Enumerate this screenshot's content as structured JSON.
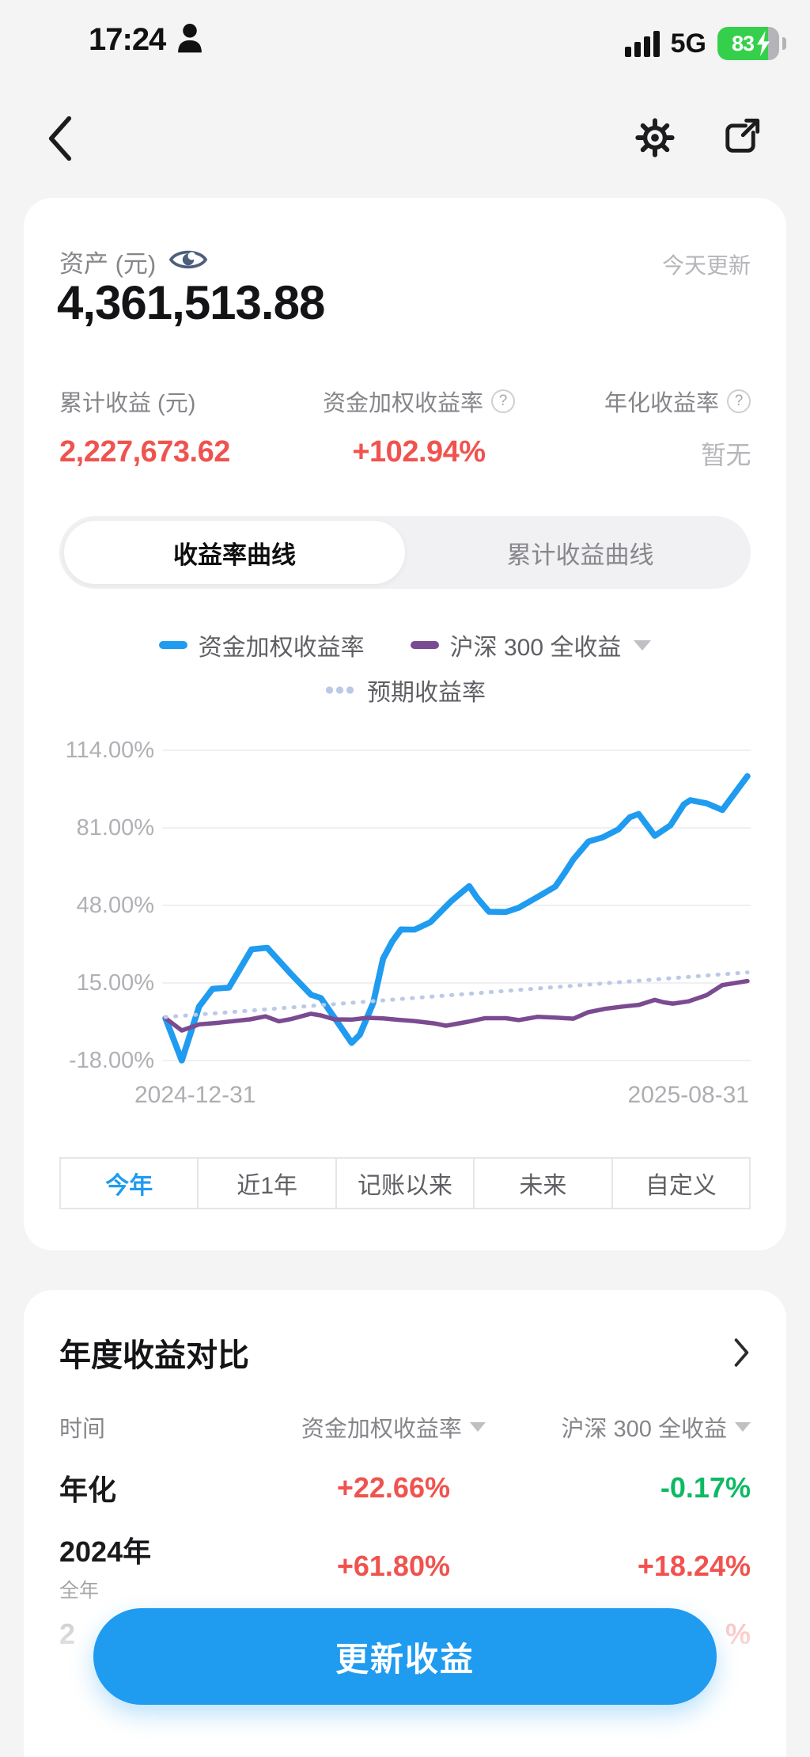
{
  "colors": {
    "accent-blue": "#1f9bf0",
    "line-blue": "#1f9bf0",
    "line-purple": "#7b4b92",
    "line-dotted": "#bcc9e6",
    "positive-red": "#f0534f",
    "negative-green": "#0fb964",
    "battery-green": "#35d04b"
  },
  "status_bar": {
    "time": "17:24",
    "network": "5G",
    "battery_percent": "83"
  },
  "asset": {
    "label": "资产 (元)",
    "updated": "今天更新",
    "value": "4,361,513.88"
  },
  "stats": [
    {
      "label": "累计收益 (元)",
      "value": "2,227,673.62"
    },
    {
      "label": "资金加权收益率",
      "value": "+102.94%"
    },
    {
      "label": "年化收益率",
      "value": "暂无"
    }
  ],
  "curve_tabs": [
    {
      "label": "收益率曲线",
      "active": true
    },
    {
      "label": "累计收益曲线",
      "active": false
    }
  ],
  "legend": [
    {
      "label": "资金加权收益率"
    },
    {
      "label": "沪深 300 全收益"
    },
    {
      "label": "预期收益率"
    }
  ],
  "chart_data": {
    "type": "line",
    "title": "收益率曲线 (今年)",
    "xlabel": "",
    "ylabel": "收益率",
    "ylim": [
      -18,
      114
    ],
    "grid": true,
    "legend_position": "top",
    "y_ticks": [
      "114.00%",
      "81.00%",
      "48.00%",
      "15.00%",
      "-18.00%"
    ],
    "y_tick_values": [
      114,
      81,
      48,
      15,
      -18
    ],
    "x_labels": [
      "2024-12-31",
      "2025-08-31"
    ],
    "series": [
      {
        "name": "资金加权收益率",
        "color": "#1f9bf0",
        "style": "solid",
        "width": 7.5,
        "points": [
          [
            0,
            0
          ],
          [
            0.028,
            -18
          ],
          [
            0.058,
            5
          ],
          [
            0.081,
            12.5
          ],
          [
            0.109,
            13
          ],
          [
            0.148,
            29.3
          ],
          [
            0.175,
            30
          ],
          [
            0.217,
            18.5
          ],
          [
            0.25,
            10
          ],
          [
            0.267,
            8.6
          ],
          [
            0.291,
            0
          ],
          [
            0.32,
            -10.5
          ],
          [
            0.334,
            -7
          ],
          [
            0.357,
            6.4
          ],
          [
            0.374,
            25.3
          ],
          [
            0.39,
            32.7
          ],
          [
            0.405,
            37.8
          ],
          [
            0.428,
            37.7
          ],
          [
            0.455,
            40.8
          ],
          [
            0.491,
            49.8
          ],
          [
            0.522,
            56.2
          ],
          [
            0.536,
            51.1
          ],
          [
            0.556,
            45.3
          ],
          [
            0.585,
            45.2
          ],
          [
            0.607,
            47
          ],
          [
            0.643,
            52.1
          ],
          [
            0.67,
            56
          ],
          [
            0.686,
            61.8
          ],
          [
            0.701,
            67.6
          ],
          [
            0.727,
            75.2
          ],
          [
            0.751,
            76.9
          ],
          [
            0.778,
            80.3
          ],
          [
            0.798,
            85.5
          ],
          [
            0.813,
            86.9
          ],
          [
            0.841,
            77.6
          ],
          [
            0.868,
            82.1
          ],
          [
            0.891,
            91
          ],
          [
            0.902,
            92.8
          ],
          [
            0.93,
            91.4
          ],
          [
            0.957,
            88.6
          ],
          [
            1,
            103
          ]
        ]
      },
      {
        "name": "沪深 300 全收益",
        "color": "#7b4b92",
        "style": "solid",
        "width": 5.5,
        "points": [
          [
            0,
            0
          ],
          [
            0.028,
            -5.2
          ],
          [
            0.058,
            -2.6
          ],
          [
            0.092,
            -1.9
          ],
          [
            0.145,
            -0.5
          ],
          [
            0.172,
            0.8
          ],
          [
            0.195,
            -1.3
          ],
          [
            0.217,
            -0.3
          ],
          [
            0.25,
            1.9
          ],
          [
            0.267,
            1.2
          ],
          [
            0.291,
            -0.5
          ],
          [
            0.32,
            -0.6
          ],
          [
            0.347,
            0.2
          ],
          [
            0.374,
            -0.1
          ],
          [
            0.401,
            -0.7
          ],
          [
            0.428,
            -1.2
          ],
          [
            0.462,
            -2.2
          ],
          [
            0.482,
            -3.2
          ],
          [
            0.52,
            -1.5
          ],
          [
            0.549,
            0
          ],
          [
            0.585,
            0
          ],
          [
            0.607,
            -0.8
          ],
          [
            0.639,
            0.6
          ],
          [
            0.67,
            0.3
          ],
          [
            0.701,
            -0.2
          ],
          [
            0.727,
            2.6
          ],
          [
            0.755,
            4
          ],
          [
            0.787,
            5
          ],
          [
            0.814,
            5.7
          ],
          [
            0.841,
            7.8
          ],
          [
            0.856,
            6.8
          ],
          [
            0.872,
            6.2
          ],
          [
            0.899,
            7.2
          ],
          [
            0.93,
            9.8
          ],
          [
            0.957,
            14.1
          ],
          [
            1,
            15.8
          ]
        ]
      },
      {
        "name": "预期收益率",
        "color": "#bcc9e6",
        "style": "dotted",
        "width": 5,
        "points": [
          [
            0,
            0.5
          ],
          [
            1,
            19.5
          ]
        ]
      }
    ]
  },
  "period_tabs": [
    {
      "label": "今年",
      "active": true
    },
    {
      "label": "近1年",
      "active": false
    },
    {
      "label": "记账以来",
      "active": false
    },
    {
      "label": "未来",
      "active": false
    },
    {
      "label": "自定义",
      "active": false
    }
  ],
  "comparison": {
    "title": "年度收益对比",
    "headers": [
      "时间",
      "资金加权收益率",
      "沪深 300 全收益"
    ],
    "rows": [
      {
        "time": "年化",
        "sub": "",
        "weighted": "+22.66%",
        "weighted_color": "red",
        "csi300": "-0.17%",
        "csi300_color": "green"
      },
      {
        "time": "2024年",
        "sub": "全年",
        "weighted": "+61.80%",
        "weighted_color": "red",
        "csi300": "+18.24%",
        "csi300_color": "red"
      },
      {
        "time": "2",
        "sub": "",
        "weighted": "",
        "weighted_color": "red",
        "csi300": "%",
        "csi300_color": "red",
        "partially_hidden": true
      }
    ]
  },
  "update_button": {
    "label": "更新收益"
  }
}
